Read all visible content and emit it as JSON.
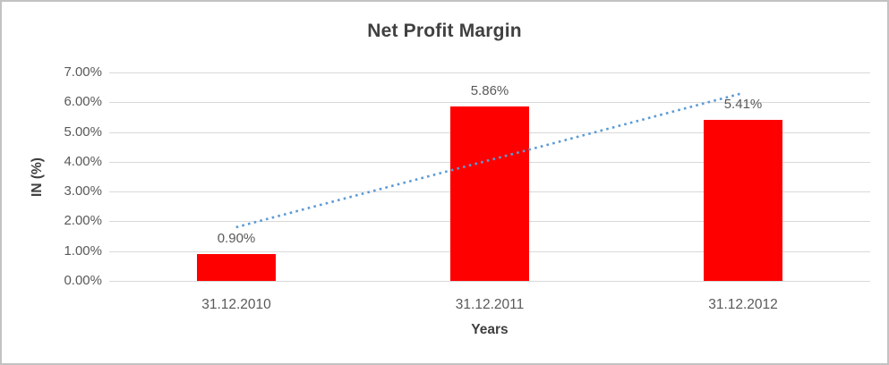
{
  "chart_data": {
    "type": "bar",
    "title": "Net Profit Margin",
    "xlabel": "Years",
    "ylabel": "IN (%)",
    "categories": [
      "31.12.2010",
      "31.12.2011",
      "31.12.2012"
    ],
    "values": [
      0.9,
      5.86,
      5.41
    ],
    "data_labels": [
      "0.90%",
      "5.86%",
      "5.41%"
    ],
    "y_ticks": [
      "7.00%",
      "6.00%",
      "5.00%",
      "4.00%",
      "3.00%",
      "2.00%",
      "1.00%",
      "0.00%"
    ],
    "ylim": [
      0,
      7
    ],
    "y_step": 1,
    "grid": true,
    "legend": "none",
    "bar_color": "#ff0000",
    "gridline_color": "#d9d9d9",
    "tick_text_color": "#595959",
    "label_text_color": "#595959",
    "title_color": "#404040",
    "axis_title_color": "#3f3f3f",
    "trendline": {
      "type": "linear",
      "style": "dotted",
      "color": "#5b9bd5"
    }
  }
}
